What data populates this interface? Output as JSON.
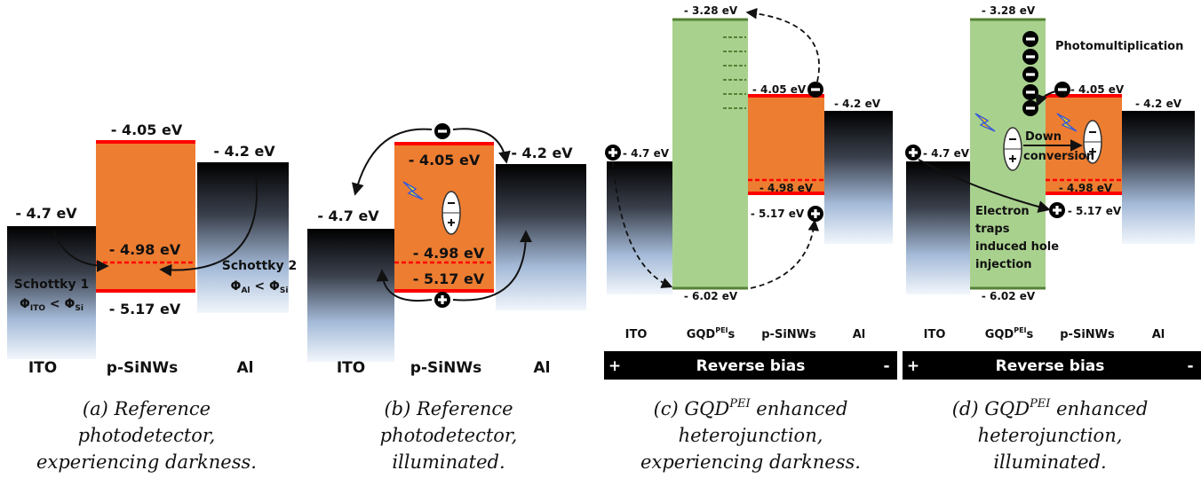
{
  "panels": [
    {
      "levels": {
        "lumo": "- 4.05 eV",
        "al": "- 4.2 eV",
        "ito": "- 4.7 eV",
        "fermi": "- 4.98 eV",
        "homo": "- 5.17 eV"
      },
      "schottky1": {
        "title": "Schottky 1",
        "formula": [
          "Φ",
          "ITO",
          " < Φ",
          "Si"
        ]
      },
      "schottky2": {
        "title": "Schottky 2",
        "formula": [
          "Φ",
          "Al",
          " < Φ",
          "Si"
        ]
      },
      "materials": [
        "ITO",
        "p-SiNWs",
        "Al"
      ],
      "caption": [
        "(a) Reference",
        "photodetector,",
        "experiencing darkness."
      ]
    },
    {
      "levels": {
        "lumo": "- 4.05 eV",
        "al": "- 4.2 eV",
        "ito": "- 4.7 eV",
        "fermi": "- 4.98 eV",
        "homo": "- 5.17 eV"
      },
      "materials": [
        "ITO",
        "p-SiNWs",
        "Al"
      ],
      "caption": [
        "(b) Reference",
        "photodetector,",
        "illuminated."
      ]
    },
    {
      "levels": {
        "gqd_lumo": "- 3.28 eV",
        "lumo": "- 4.05 eV",
        "al": "- 4.2 eV",
        "ito": "- 4.7 eV",
        "fermi": "- 4.98 eV",
        "homo": "- 5.17 eV",
        "gqd_homo": "- 6.02 eV"
      },
      "materials": [
        "ITO",
        {
          "name": "GQD",
          "sup": "PEI",
          "suffix": "s"
        },
        "p-SiNWs",
        "Al"
      ],
      "bias": {
        "plus": "+",
        "label": "Reverse bias",
        "minus": "-"
      },
      "caption": [
        [
          "(c) GQD",
          "PEI",
          " enhanced"
        ],
        "heterojunction,",
        "experiencing darkness."
      ]
    },
    {
      "levels": {
        "gqd_lumo": "- 3.28 eV",
        "lumo": "- 4.05 eV",
        "al": "- 4.2 eV",
        "ito": "- 4.7 eV",
        "fermi": "- 4.98 eV",
        "homo": "- 5.17 eV",
        "gqd_homo": "- 6.02 eV"
      },
      "notes": {
        "photomultiplication": "Photomultiplication",
        "down_conversion": [
          "Down",
          "conversion"
        ],
        "traps": [
          "Electron",
          "traps",
          "induced hole",
          "injection"
        ]
      },
      "materials": [
        "ITO",
        {
          "name": "GQD",
          "sup": "PEI",
          "suffix": "s"
        },
        "p-SiNWs",
        "Al"
      ],
      "bias": {
        "plus": "+",
        "label": "Reverse bias",
        "minus": "-"
      },
      "caption": [
        [
          "(d) GQD",
          "PEI",
          " enhanced"
        ],
        "heterojunction,",
        "illuminated."
      ]
    }
  ]
}
